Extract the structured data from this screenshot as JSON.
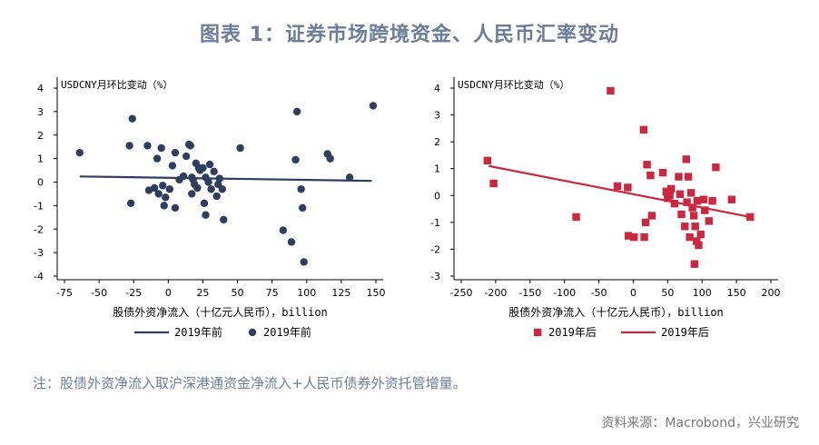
{
  "title": "图表 1：证券市场跨境资金、人民币汇率变动",
  "note": "注：股债外资净流入取沪深港通资金净流入+人民币债券外资托管增量。",
  "source": "资料来源：Macrobond，兴业研究",
  "colors": {
    "left": "#2f3e5e",
    "right": "#c9283e",
    "title": "#6b7d99"
  },
  "chart_data": [
    {
      "type": "scatter",
      "title": "USDCNY月环比变动（%）",
      "xlabel": "股债外资净流入（十亿元人民币），billion",
      "xlim": [
        -75,
        150
      ],
      "ylim": [
        -4,
        4
      ],
      "xticks": [
        -75,
        -50,
        -25,
        0,
        25,
        50,
        75,
        100,
        125,
        150
      ],
      "yticks": [
        4,
        3,
        2,
        1,
        0,
        -1,
        -2,
        -3,
        -4
      ],
      "marker": "circle",
      "legend": [
        "2019年前",
        "2019年前"
      ],
      "fit": {
        "x": [
          -64,
          147
        ],
        "y": [
          0.24,
          0.05
        ]
      },
      "points": [
        [
          -64,
          1.25
        ],
        [
          -26,
          2.7
        ],
        [
          -28,
          1.55
        ],
        [
          -27,
          -0.9
        ],
        [
          -15,
          1.55
        ],
        [
          -14,
          -0.35
        ],
        [
          -10,
          -0.25
        ],
        [
          -8,
          1.0
        ],
        [
          -7,
          -0.5
        ],
        [
          -5,
          1.45
        ],
        [
          -4,
          -0.15
        ],
        [
          -3,
          -1.0
        ],
        [
          -2,
          -0.65
        ],
        [
          1,
          -0.3
        ],
        [
          3,
          0.7
        ],
        [
          5,
          1.25
        ],
        [
          5,
          -1.1
        ],
        [
          8,
          0.1
        ],
        [
          11,
          0.25
        ],
        [
          13,
          1.1
        ],
        [
          15,
          1.6
        ],
        [
          16,
          1.55
        ],
        [
          17,
          -0.5
        ],
        [
          17,
          0.2
        ],
        [
          18,
          0.1
        ],
        [
          19,
          -0.1
        ],
        [
          20,
          0.8
        ],
        [
          21,
          -0.25
        ],
        [
          22,
          0.6
        ],
        [
          23,
          0.5
        ],
        [
          25,
          0.6
        ],
        [
          26,
          -0.9
        ],
        [
          27,
          0.2
        ],
        [
          27,
          -1.4
        ],
        [
          29,
          0.0
        ],
        [
          30,
          0.75
        ],
        [
          31,
          -0.3
        ],
        [
          33,
          0.45
        ],
        [
          35,
          -0.6
        ],
        [
          36,
          -0.1
        ],
        [
          37,
          0.15
        ],
        [
          39,
          -0.3
        ],
        [
          40,
          -1.6
        ],
        [
          52,
          1.45
        ],
        [
          83,
          -2.05
        ],
        [
          89,
          -2.55
        ],
        [
          92,
          0.95
        ],
        [
          93,
          3.0
        ],
        [
          96,
          -0.3
        ],
        [
          97,
          -1.1
        ],
        [
          98,
          -3.4
        ],
        [
          115,
          1.2
        ],
        [
          117,
          1.0
        ],
        [
          131,
          0.2
        ],
        [
          148,
          3.25
        ]
      ]
    },
    {
      "type": "scatter",
      "title": "USDCNY月环比变动（%）",
      "xlabel": "股债外资净流入（十亿元人民币），billion",
      "xlim": [
        -250,
        200
      ],
      "ylim": [
        -3,
        4
      ],
      "xticks": [
        -250,
        -200,
        -150,
        -100,
        -50,
        0,
        50,
        100,
        150,
        200
      ],
      "yticks": [
        4,
        3,
        2,
        1,
        0,
        -1,
        -2,
        -3
      ],
      "marker": "square",
      "legend": [
        "2019年后",
        "2019年后"
      ],
      "fit": {
        "x": [
          -210,
          170
        ],
        "y": [
          1.1,
          -0.8
        ]
      },
      "points": [
        [
          -212,
          1.3
        ],
        [
          -203,
          0.45
        ],
        [
          -83,
          -0.8
        ],
        [
          -33,
          3.9
        ],
        [
          -23,
          0.35
        ],
        [
          -8,
          0.3
        ],
        [
          -7,
          -1.5
        ],
        [
          1,
          -1.55
        ],
        [
          15,
          2.45
        ],
        [
          16,
          -1.55
        ],
        [
          18,
          -1.0
        ],
        [
          20,
          1.15
        ],
        [
          25,
          0.75
        ],
        [
          27,
          -0.75
        ],
        [
          43,
          0.85
        ],
        [
          48,
          0.15
        ],
        [
          50,
          -0.1
        ],
        [
          53,
          0.0
        ],
        [
          55,
          0.25
        ],
        [
          60,
          -0.3
        ],
        [
          66,
          0.7
        ],
        [
          68,
          0.05
        ],
        [
          70,
          -0.7
        ],
        [
          75,
          -1.15
        ],
        [
          77,
          1.35
        ],
        [
          78,
          -0.25
        ],
        [
          80,
          0.7
        ],
        [
          82,
          -1.55
        ],
        [
          84,
          0.1
        ],
        [
          86,
          -0.45
        ],
        [
          88,
          -0.75
        ],
        [
          89,
          -2.55
        ],
        [
          90,
          -1.15
        ],
        [
          92,
          -1.7
        ],
        [
          93,
          -0.2
        ],
        [
          95,
          -1.85
        ],
        [
          98,
          -1.45
        ],
        [
          102,
          -0.15
        ],
        [
          104,
          -0.55
        ],
        [
          110,
          -0.95
        ],
        [
          115,
          -0.2
        ],
        [
          120,
          1.05
        ],
        [
          143,
          -0.15
        ],
        [
          170,
          -0.8
        ]
      ]
    }
  ]
}
